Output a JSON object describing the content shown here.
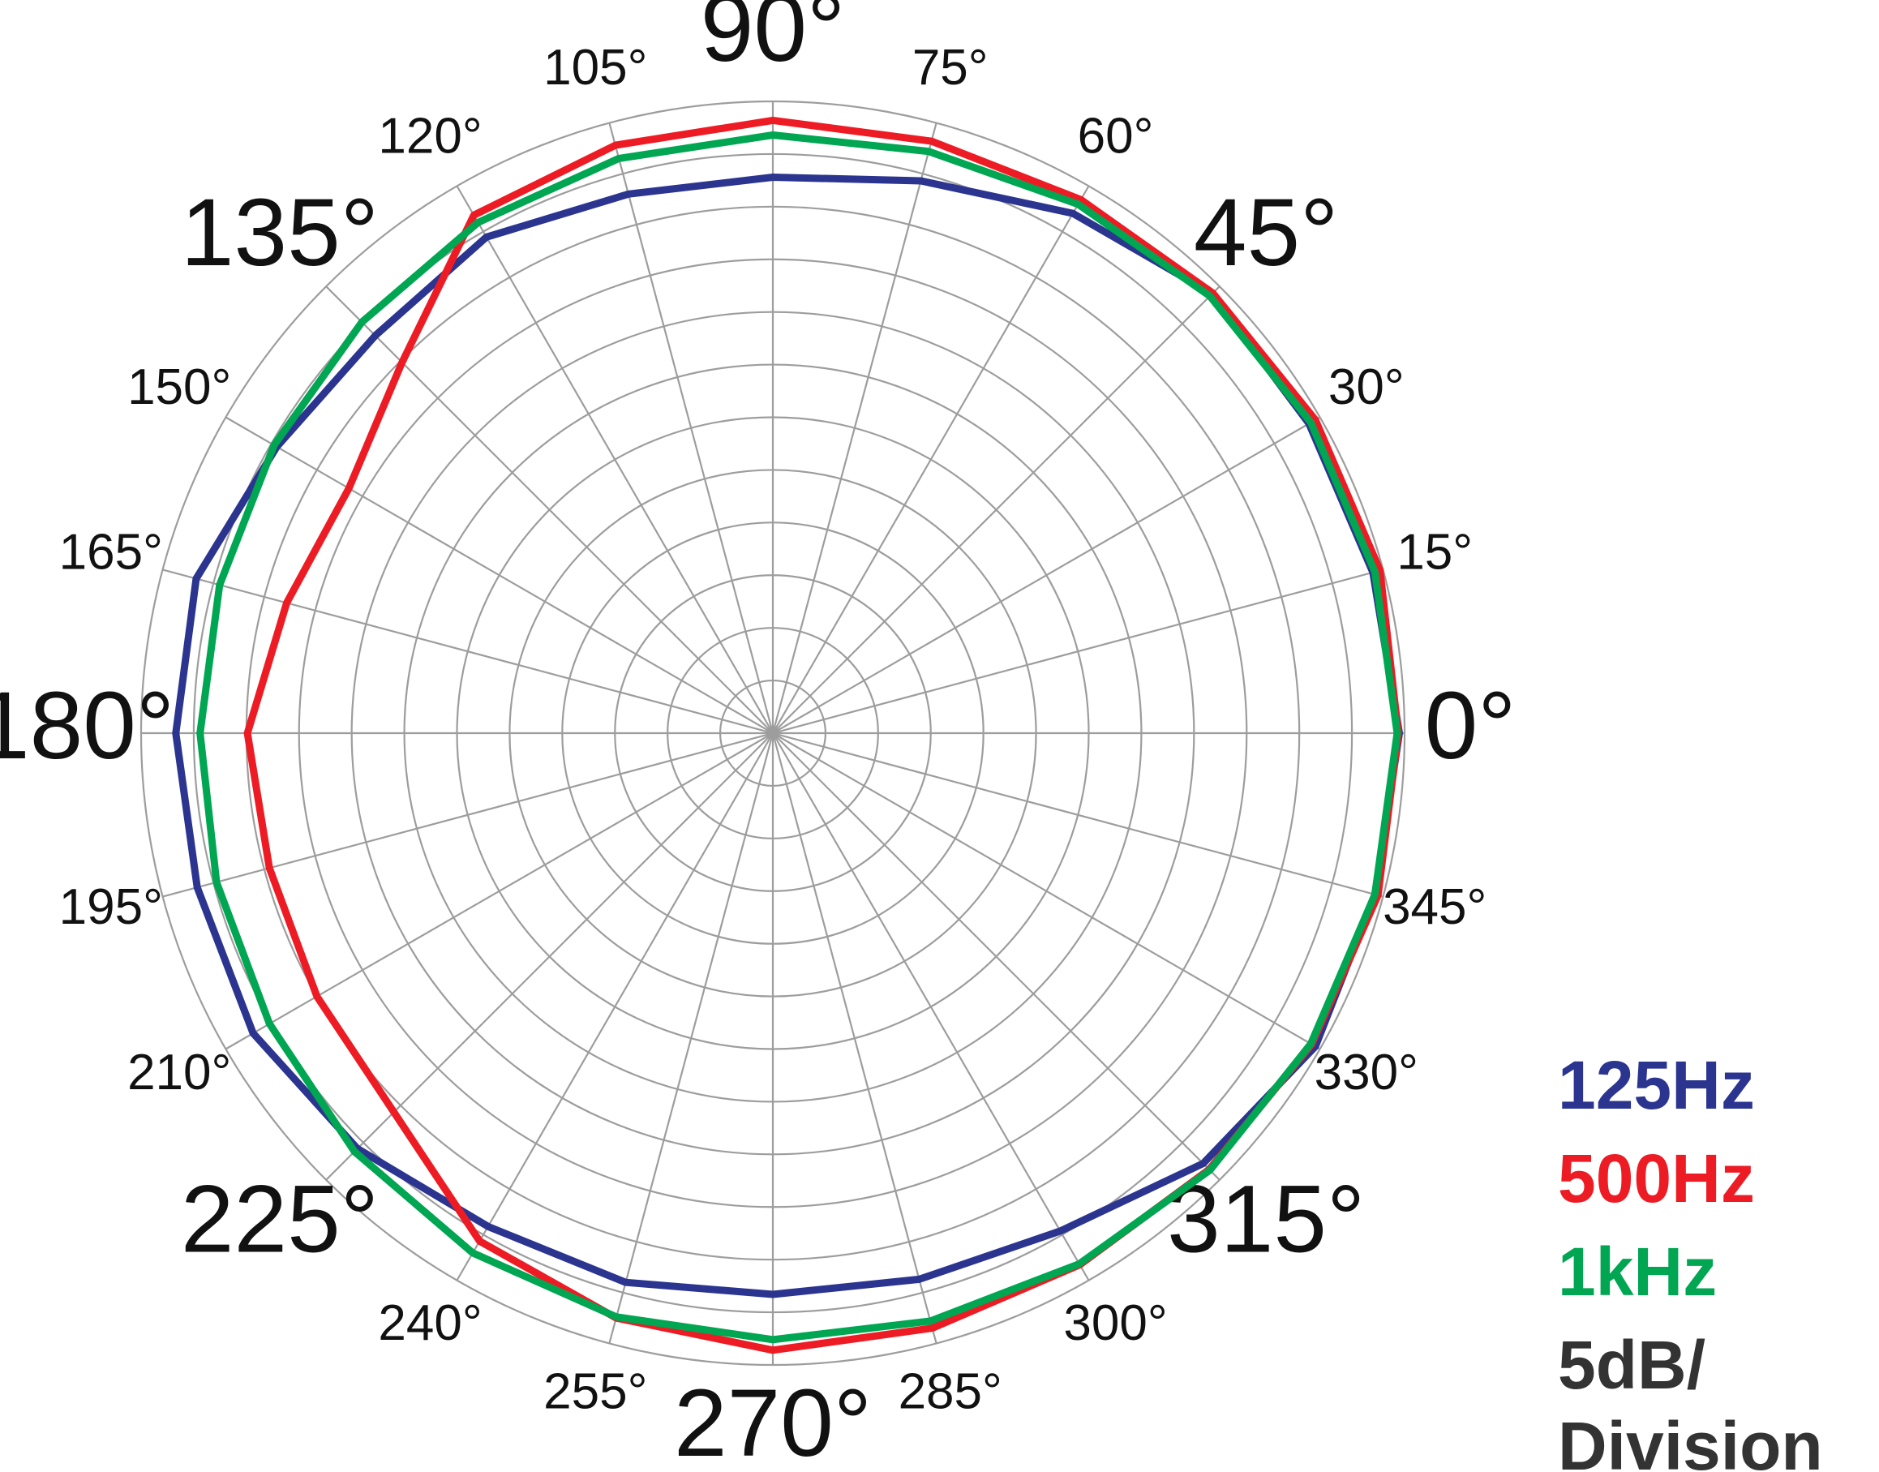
{
  "chart_data": {
    "type": "polar",
    "theta": [
      0,
      15,
      30,
      45,
      60,
      75,
      90,
      105,
      120,
      135,
      150,
      165,
      180,
      195,
      210,
      225,
      240,
      255,
      270,
      285,
      300,
      315,
      330,
      345
    ],
    "thetaticks": [
      {
        "value": 0,
        "label": "0°"
      },
      {
        "value": 15,
        "label": "15°"
      },
      {
        "value": 30,
        "label": "30°"
      },
      {
        "value": 45,
        "label": "45°"
      },
      {
        "value": 60,
        "label": "60°"
      },
      {
        "value": 75,
        "label": "75°"
      },
      {
        "value": 90,
        "label": "90°"
      },
      {
        "value": 105,
        "label": "105°"
      },
      {
        "value": 120,
        "label": "120°"
      },
      {
        "value": 135,
        "label": "135°"
      },
      {
        "value": 150,
        "label": "150°"
      },
      {
        "value": 165,
        "label": "165°"
      },
      {
        "value": 180,
        "label": "180°"
      },
      {
        "value": 195,
        "label": "195°"
      },
      {
        "value": 210,
        "label": "210°"
      },
      {
        "value": 225,
        "label": "225°"
      },
      {
        "value": 240,
        "label": "240°"
      },
      {
        "value": 255,
        "label": "255°"
      },
      {
        "value": 270,
        "label": "270°"
      },
      {
        "value": 285,
        "label": "285°"
      },
      {
        "value": 300,
        "label": "300°"
      },
      {
        "value": 315,
        "label": "315°"
      },
      {
        "value": 330,
        "label": "330°"
      },
      {
        "value": 345,
        "label": "345°"
      }
    ],
    "rlim": [
      -60,
      0
    ],
    "rticks": [
      -55,
      -50,
      -45,
      -40,
      -35,
      -30,
      -25,
      -20,
      -15,
      -10,
      -5,
      0
    ],
    "grid": true,
    "annotation": [
      "5dB/",
      "Division"
    ],
    "series": [
      {
        "name": "125Hz",
        "color": "#2b3590",
        "values": [
          -0.5,
          -1,
          -1.2,
          -1,
          -3,
          -5.7,
          -7.2,
          -7,
          -5.6,
          -6.6,
          -5.6,
          -3.3,
          -3.3,
          -3.4,
          -3,
          -4.2,
          -5.9,
          -6,
          -6.7,
          -6.3,
          -5.4,
          -2.2,
          -0.5,
          -0.8
        ]
      },
      {
        "name": "500Hz",
        "color": "#ed1c24",
        "values": [
          -0.6,
          -0.3,
          -0.5,
          -0.9,
          -1.5,
          -1.8,
          -1.8,
          -2.2,
          -3.2,
          -10.2,
          -13.5,
          -12.2,
          -10.1,
          -10.5,
          -10,
          -9.1,
          -4.3,
          -2.5,
          -1.4,
          -1.5,
          -1.7,
          -1.4,
          -0.9,
          -0.5
        ]
      },
      {
        "name": "1kHz",
        "color": "#00a651",
        "values": [
          -0.7,
          -0.8,
          -1,
          -1.3,
          -2,
          -2.8,
          -3.2,
          -3.5,
          -4,
          -4.8,
          -5.3,
          -5.6,
          -5.6,
          -5.3,
          -4.8,
          -3.8,
          -3,
          -2.6,
          -2.4,
          -2.2,
          -1.8,
          -1.3,
          -1,
          -0.8
        ]
      }
    ]
  }
}
